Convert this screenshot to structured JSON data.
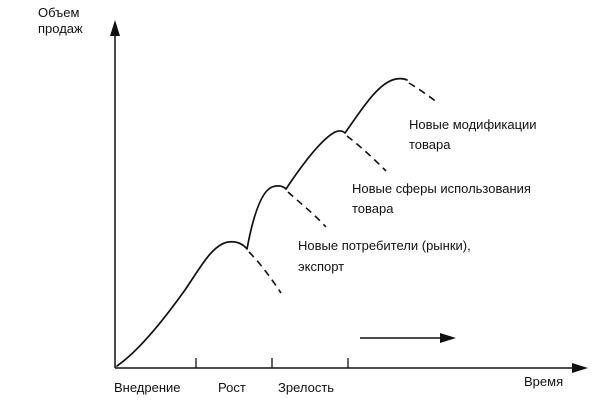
{
  "axes": {
    "y_label_line1": "Объем",
    "y_label_line2": "продаж",
    "x_label": "Время"
  },
  "stages": [
    {
      "label": "Внедрение"
    },
    {
      "label": "Рост"
    },
    {
      "label": "Зрелость"
    }
  ],
  "annotations": [
    {
      "line1": "Новые потребители (рынки),",
      "line2": "экспорт"
    },
    {
      "line1": "Новые сферы использования",
      "line2": "товара"
    },
    {
      "line1": "Новые модификации",
      "line2": "товара"
    }
  ],
  "colors": {
    "ink": "#111111",
    "background": "#ffffff"
  }
}
